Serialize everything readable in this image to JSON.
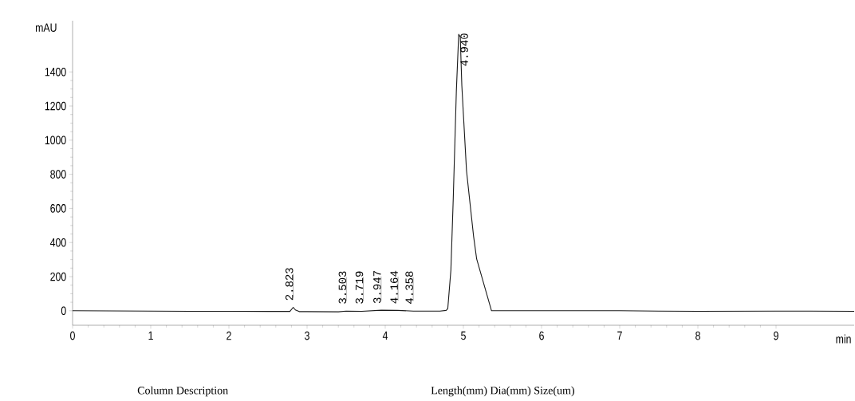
{
  "chart_data": {
    "type": "line",
    "xlabel": "min",
    "ylabel": "mAU",
    "x": [
      0,
      0.5,
      1,
      1.5,
      2,
      2.5,
      2.78,
      2.823,
      2.85,
      2.9,
      3.0,
      3.4,
      3.5,
      3.7,
      3.95,
      4.16,
      4.36,
      4.7,
      4.78,
      4.8,
      4.84,
      4.87,
      4.91,
      4.94,
      4.96,
      4.98,
      5.0,
      5.04,
      5.13,
      5.17,
      5.36,
      6,
      7,
      7.5,
      8,
      9,
      10
    ],
    "series": [
      {
        "color": "#1a1a1a",
        "values": [
          0,
          -1,
          -2,
          -3,
          -3,
          -4,
          -4,
          20,
          5,
          -5,
          -5,
          -6,
          -2,
          -3,
          3,
          2,
          -2,
          -2,
          2,
          12,
          238,
          653,
          1288,
          1620,
          1605,
          1320,
          1152,
          820,
          438,
          303,
          0,
          0,
          0,
          -2,
          -3,
          -2,
          -3
        ]
      }
    ],
    "xlim": [
      0,
      10
    ],
    "ylim": [
      -85,
      1700
    ],
    "xticks": [
      0,
      1,
      2,
      3,
      4,
      5,
      6,
      7,
      8,
      9
    ],
    "yticks": [
      0,
      200,
      400,
      600,
      800,
      1000,
      1200,
      1400
    ],
    "marker": "none",
    "line_style": "solid",
    "annotations": [
      {
        "text": "2.823",
        "x": 2.823,
        "y": 20
      },
      {
        "text": "3.503",
        "x": 3.503,
        "y": 0
      },
      {
        "text": "3.719",
        "x": 3.719,
        "y": 0
      },
      {
        "text": "3.947",
        "x": 3.947,
        "y": 3
      },
      {
        "text": "4.164",
        "x": 4.164,
        "y": 2
      },
      {
        "text": "4.358",
        "x": 4.358,
        "y": 0
      },
      {
        "text": "4.940",
        "x": 4.94,
        "y": 1620
      },
      "Column Description",
      "Length(mm)   Dia(mm)   Size(um)"
    ]
  }
}
